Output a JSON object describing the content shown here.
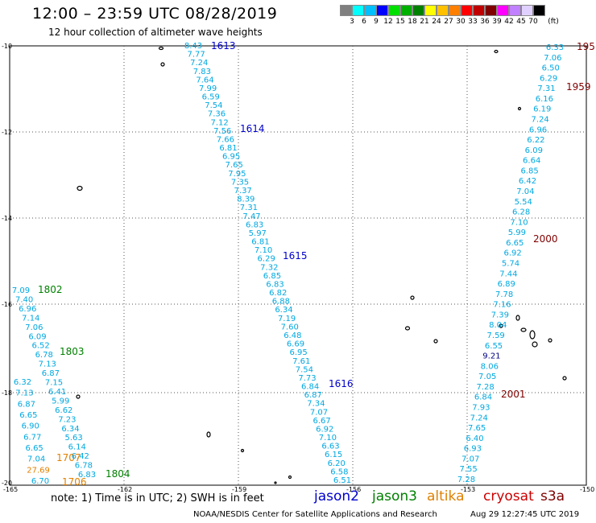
{
  "header": {
    "title": "12:00 – 23:59 UTC 08/28/2019",
    "subtitle": "12 hour collection of altimeter wave heights"
  },
  "scale": {
    "colors": [
      "#7f7f7f",
      "#00ffff",
      "#00bfff",
      "#0000ff",
      "#00e000",
      "#00b000",
      "#008000",
      "#ffff00",
      "#ffc000",
      "#ff8000",
      "#ff0000",
      "#c00000",
      "#800000",
      "#ff00ff",
      "#c080ff",
      "#e0d0ff",
      "#000000"
    ],
    "labels": [
      "3",
      "6",
      "9",
      "12",
      "15",
      "18",
      "21",
      "24",
      "27",
      "30",
      "33",
      "36",
      "39",
      "42",
      "45",
      "70",
      "(ft)"
    ]
  },
  "axes": {
    "lat_labels": [
      "-10",
      "-12",
      "-14",
      "-16",
      "-18",
      "-20"
    ],
    "lon_labels": [
      "-165",
      "-162",
      "-159",
      "-156",
      "-153",
      "-150"
    ]
  },
  "tracks": {
    "t1613": {
      "label": "1613",
      "color": "#0000cc",
      "values": [
        "8.43",
        "7.77",
        "7.24",
        "7.83",
        "7.64",
        "7.99",
        "6.59",
        "7.54",
        "7.36",
        "7.12",
        "7.56",
        "7.66",
        "6.81",
        "6.95",
        "7.65",
        "7.95",
        "7.35",
        "7.37",
        "8.39",
        "7.31",
        "7.47",
        "6.83",
        "5.97",
        "6.81",
        "7.10",
        "6.29",
        "7.32",
        "6.85",
        "6.83",
        "6.82",
        "6.88",
        "6.34",
        "7.19",
        "7.60",
        "6.48",
        "6.69",
        "6.95",
        "7.61",
        "7.54",
        "7.73",
        "6.84",
        "6.87",
        "7.34",
        "7.07",
        "6.67",
        "6.92",
        "7.10",
        "6.63",
        "6.15",
        "6.20",
        "6.58",
        "6.51"
      ]
    },
    "t1614": {
      "label": "1614",
      "color": "#0000cc"
    },
    "t1615": {
      "label": "1615",
      "color": "#0000cc"
    },
    "t1616": {
      "label": "1616",
      "color": "#0000cc"
    },
    "t1802": {
      "label": "1802",
      "color": "#008000",
      "values": [
        "7.09",
        "7.40",
        "6.96",
        "7.14",
        "7.06",
        "6.09",
        "6.52",
        "6.78",
        "7.13",
        "6.87",
        "7.15",
        "6.41",
        "5.99",
        "6.62",
        "7.23",
        "6.34",
        "5.63",
        "6.14",
        "6.42",
        "6.78",
        "6.83"
      ]
    },
    "t1803": {
      "label": "1803",
      "color": "#008000"
    },
    "t1804": {
      "label": "1804",
      "color": "#008000"
    },
    "t1706": {
      "label": "1706",
      "color": "#e08000"
    },
    "t1707": {
      "label": "1707",
      "color": "#e08000"
    },
    "left_extra": {
      "values": [
        "6.32",
        "7.13",
        "6.87",
        "6.65",
        "6.90",
        "6.77",
        "6.65",
        "7.04",
        "27.69",
        "6.70"
      ],
      "high": "27.69",
      "high_color": "#e08000"
    },
    "t1959": {
      "label": "1959",
      "color": "#800000",
      "values": [
        "6.33",
        "7.06",
        "6.50",
        "6.29",
        "7.31",
        "6.16",
        "6.19",
        "7.24",
        "6.96",
        "6.22",
        "6.09",
        "6.64",
        "6.85",
        "6.42",
        "7.04",
        "5.54",
        "6.28",
        "7.10",
        "5.99",
        "6.65",
        "6.92",
        "5.74",
        "7.44",
        "6.89",
        "7.78",
        "7.16",
        "7.39",
        "8.04",
        "7.59",
        "6.55",
        "9.21",
        "8.06",
        "7.05",
        "7.28",
        "6.84",
        "7.93",
        "7.24",
        "7.65",
        "6.40",
        "6.93",
        "7.07",
        "7.55",
        "7.28"
      ],
      "dark_value": "9.21"
    },
    "t195": {
      "label": "195",
      "color": "#800000"
    },
    "t2000": {
      "label": "2000",
      "color": "#800000"
    },
    "t2001": {
      "label": "2001",
      "color": "#800000"
    }
  },
  "legend": {
    "note": "note: 1) Time is in UTC; 2) SWH is in feet",
    "jason2": {
      "label": "jason2",
      "color": "#0000cc"
    },
    "jason3": {
      "label": "jason3",
      "color": "#008000"
    },
    "altika": {
      "label": "altika",
      "color": "#e08000"
    },
    "cryosat": {
      "label": "cryosat",
      "color": "#cc0000"
    },
    "s3a": {
      "label": "s3a",
      "color": "#800000"
    }
  },
  "footer": {
    "credit": "NOAA/NESDIS Center for Satellite Applications and Research",
    "timestamp": "Aug 29 12:27:45 UTC 2019"
  }
}
